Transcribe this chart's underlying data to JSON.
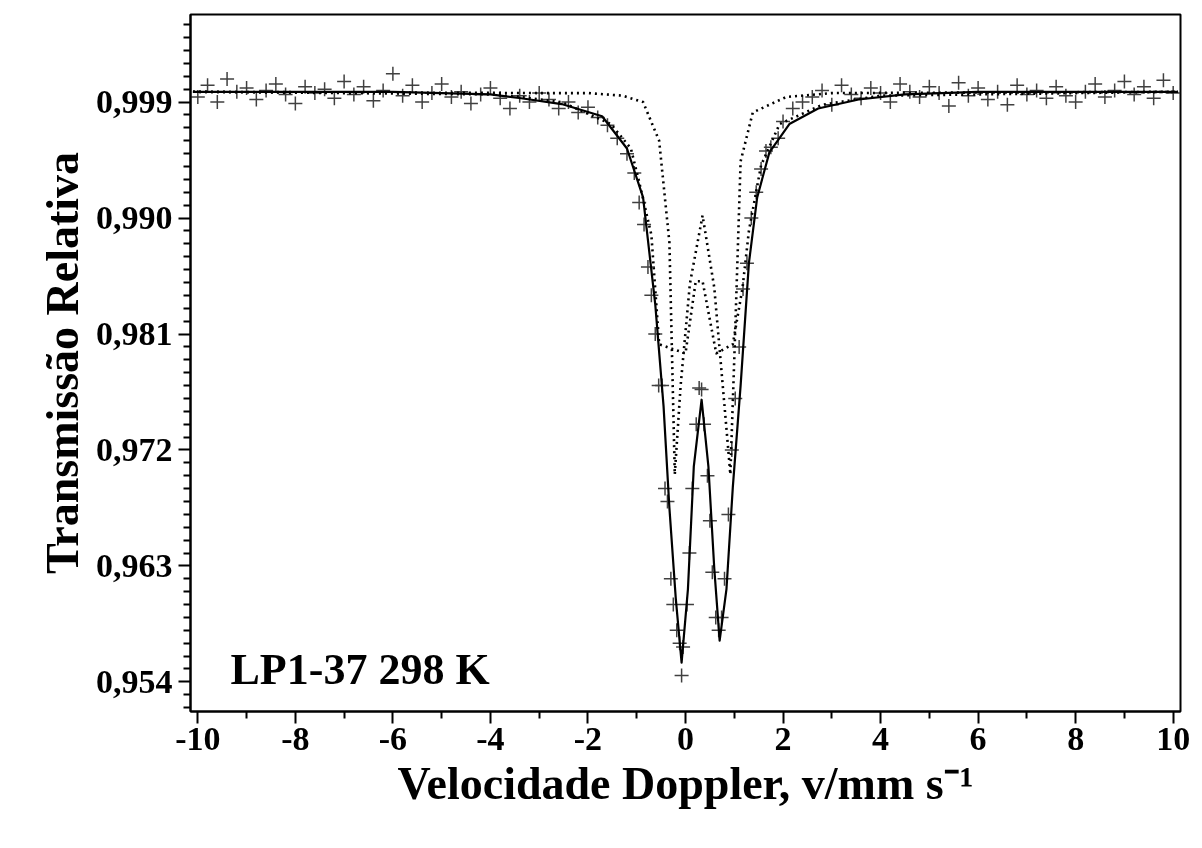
{
  "chart_data": {
    "type": "scatter",
    "xlabel": "Velocidade Doppler, v/mm s⁻¹",
    "ylabel": "Transmissão Relativa",
    "annotations": [
      "LP1-37   298 K"
    ],
    "xlim": [
      -10.15,
      10.15
    ],
    "ylim": [
      0.9517,
      1.0058
    ],
    "xticks": [
      -10,
      -8,
      -6,
      -4,
      -2,
      0,
      2,
      4,
      6,
      8,
      10
    ],
    "yticks": [
      {
        "value": 0.954,
        "label": "0,954"
      },
      {
        "value": 0.963,
        "label": "0,963"
      },
      {
        "value": 0.972,
        "label": "0,972"
      },
      {
        "value": 0.981,
        "label": "0,981"
      },
      {
        "value": 0.99,
        "label": "0,990"
      },
      {
        "value": 0.999,
        "label": "0,999"
      }
    ],
    "grid": false,
    "series": [
      {
        "marker": "cross",
        "color": "#404040",
        "x": [
          -10.0,
          -9.8,
          -9.6,
          -9.4,
          -9.2,
          -9.0,
          -8.8,
          -8.6,
          -8.4,
          -8.2,
          -8.0,
          -7.8,
          -7.6,
          -7.4,
          -7.2,
          -7.0,
          -6.8,
          -6.6,
          -6.4,
          -6.2,
          -6.0,
          -5.8,
          -5.6,
          -5.4,
          -5.2,
          -5.0,
          -4.8,
          -4.6,
          -4.4,
          -4.2,
          -4.0,
          -3.8,
          -3.6,
          -3.4,
          -3.2,
          -3.0,
          -2.8,
          -2.6,
          -2.4,
          -2.2,
          -2.0,
          -1.8,
          -1.6,
          -1.4,
          -1.2,
          -1.05,
          -0.95,
          -0.85,
          -0.77,
          -0.7,
          -0.62,
          -0.55,
          -0.48,
          -0.42,
          -0.37,
          -0.3,
          -0.25,
          -0.18,
          -0.12,
          -0.08,
          -0.05,
          0.03,
          0.08,
          0.14,
          0.22,
          0.28,
          0.33,
          0.38,
          0.45,
          0.5,
          0.55,
          0.62,
          0.68,
          0.74,
          0.8,
          0.88,
          0.95,
          1.02,
          1.1,
          1.18,
          1.26,
          1.35,
          1.45,
          1.55,
          1.65,
          1.75,
          1.9,
          2.0,
          2.2,
          2.4,
          2.6,
          2.8,
          3.0,
          3.2,
          3.4,
          3.6,
          3.8,
          4.0,
          4.2,
          4.4,
          4.6,
          4.8,
          5.0,
          5.2,
          5.4,
          5.6,
          5.8,
          6.0,
          6.2,
          6.4,
          6.6,
          6.8,
          7.0,
          7.2,
          7.4,
          7.6,
          7.8,
          8.0,
          8.2,
          8.4,
          8.6,
          8.8,
          9.0,
          9.2,
          9.4,
          9.6,
          9.8,
          10.0
        ],
        "values": [
          0.9994,
          1.0003,
          0.999,
          1.0008,
          0.9998,
          1.0001,
          0.9992,
          0.9999,
          1.0004,
          0.9996,
          0.9989,
          1.0002,
          0.9997,
          1.0,
          0.9993,
          1.0006,
          0.9996,
          1.0002,
          0.9991,
          0.9999,
          1.0012,
          0.9995,
          1.0003,
          0.999,
          0.9997,
          1.0004,
          0.9994,
          0.9998,
          0.9989,
          0.9996,
          1.0001,
          0.9993,
          0.9985,
          0.9995,
          0.999,
          0.9997,
          0.9992,
          0.9985,
          0.999,
          0.9982,
          0.9986,
          0.9978,
          0.9972,
          0.9962,
          0.995,
          0.9935,
          0.9912,
          0.9895,
          0.9862,
          0.984,
          0.981,
          0.977,
          0.977,
          0.969,
          0.968,
          0.962,
          0.96,
          0.958,
          0.957,
          0.9545,
          0.9567,
          0.96,
          0.964,
          0.969,
          0.974,
          0.9768,
          0.9767,
          0.974,
          0.97,
          0.9665,
          0.9625,
          0.959,
          0.958,
          0.959,
          0.962,
          0.967,
          0.972,
          0.976,
          0.98,
          0.9845,
          0.9865,
          0.99,
          0.992,
          0.9938,
          0.9952,
          0.9955,
          0.9962,
          0.9975,
          0.9985,
          0.999,
          0.9994,
          0.9999,
          0.9988,
          1.0003,
          0.9996,
          0.9993,
          1.0001,
          0.9997,
          0.999,
          1.0004,
          0.9998,
          0.9994,
          1.0002,
          0.9997,
          0.9987,
          1.0005,
          0.9995,
          1.0001,
          0.9992,
          0.9998,
          0.9988,
          1.0003,
          0.9996,
          0.9999,
          0.9993,
          1.0002,
          0.9995,
          0.999,
          0.9998,
          1.0004,
          0.9994,
          0.9999,
          1.0006,
          0.9996,
          1.0002,
          0.9993,
          1.0007,
          0.9997
        ]
      },
      {
        "type": "line",
        "line_style": "solid",
        "color": "#000000",
        "x": [
          -10.1,
          -6,
          -4,
          -3.37,
          -2.54,
          -1.71,
          -1.2,
          -0.87,
          -0.62,
          -0.45,
          -0.33,
          -0.2,
          -0.08,
          0.05,
          0.17,
          0.33,
          0.47,
          0.59,
          0.7,
          0.84,
          0.97,
          1.13,
          1.3,
          1.47,
          1.72,
          2.13,
          2.72,
          3.55,
          4.5,
          6,
          10.1
        ],
        "values": [
          0.9998,
          0.9998,
          0.9996,
          0.9993,
          0.99885,
          0.9979,
          0.9954,
          0.9916,
          0.9833,
          0.9754,
          0.9675,
          0.9605,
          0.9555,
          0.9612,
          0.9707,
          0.9759,
          0.9707,
          0.9628,
          0.9572,
          0.9612,
          0.9691,
          0.977,
          0.9865,
          0.9916,
          0.9951,
          0.9973,
          0.9985,
          0.9992,
          0.9996,
          0.9998,
          0.9998
        ]
      },
      {
        "type": "line",
        "line_style": "dotted",
        "color": "#000000",
        "x": [
          -10.1,
          -3,
          -2,
          -1.29,
          -0.87,
          -0.54,
          -0.33,
          -0.22,
          -0.1,
          0.09,
          0.35,
          0.59,
          0.8,
          0.92,
          1.01,
          1.13,
          1.38,
          2.07,
          3,
          10.1
        ],
        "values": [
          0.9998,
          0.9997,
          0.9997,
          0.9995,
          0.999,
          0.996,
          0.9881,
          0.9701,
          0.977,
          0.9849,
          0.9902,
          0.9846,
          0.9754,
          0.9701,
          0.9802,
          0.9944,
          0.9982,
          0.9994,
          0.9997,
          0.9998
        ]
      },
      {
        "type": "line",
        "line_style": "dotted",
        "color": "#000000",
        "x": [
          -10.1,
          -4,
          -3.37,
          -2.54,
          -1.53,
          -1.12,
          -0.95,
          -0.7,
          -0.54,
          0.0,
          0.21,
          0.35,
          0.63,
          0.97,
          1.17,
          1.3,
          1.55,
          1.93,
          2.81,
          4,
          10.1
        ],
        "values": [
          0.9998,
          0.9996,
          0.9994,
          0.999,
          0.9973,
          0.9954,
          0.9928,
          0.9887,
          0.9802,
          0.9795,
          0.9851,
          0.9851,
          0.9795,
          0.9802,
          0.9846,
          0.989,
          0.9941,
          0.9973,
          0.9988,
          0.9995,
          0.9998
        ]
      }
    ]
  }
}
